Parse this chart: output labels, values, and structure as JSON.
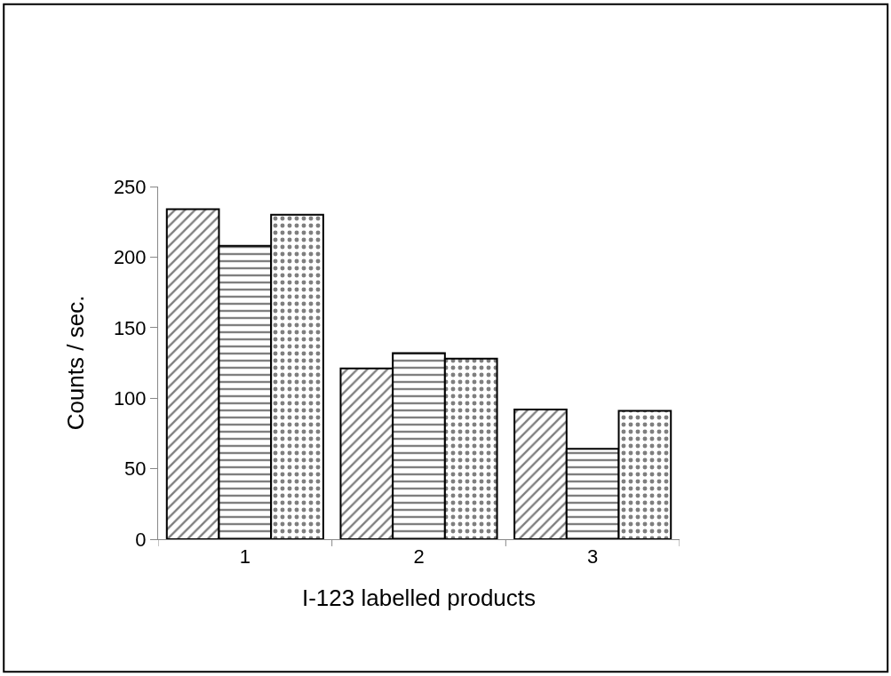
{
  "chart_data": {
    "type": "bar",
    "xlabel": "I-123 labelled products",
    "ylabel": "Counts / sec.",
    "categories": [
      "1",
      "2",
      "3"
    ],
    "series": [
      {
        "color": "#000000",
        "values": [
          234,
          121,
          92
        ]
      },
      {
        "color": "#000000",
        "values": [
          208,
          132,
          64
        ]
      },
      {
        "color": "#000000",
        "values": [
          230,
          128,
          91
        ]
      }
    ],
    "ylim": [
      0,
      250
    ],
    "yticks": [
      0,
      50,
      100,
      150,
      200,
      250
    ]
  }
}
